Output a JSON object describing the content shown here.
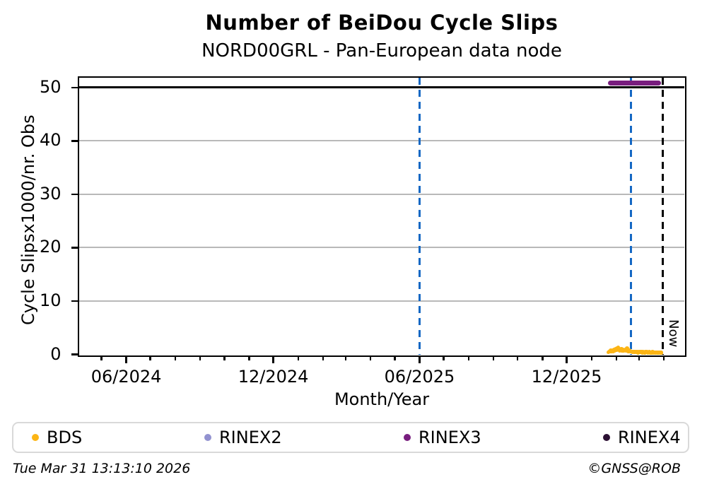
{
  "title": "Number of BeiDou Cycle Slips",
  "subtitle": "NORD00GRL - Pan-European data node",
  "footer": {
    "timestamp": "Tue Mar 31 13:13:10 2026",
    "credit": "©GNSS@ROB"
  },
  "legend": [
    {
      "label": "BDS",
      "color": "#fcb515"
    },
    {
      "label": "RINEX2",
      "color": "#9292d0"
    },
    {
      "label": "RINEX3",
      "color": "#781d7e"
    },
    {
      "label": "RINEX4",
      "color": "#2c1033"
    }
  ],
  "chart_data": {
    "type": "scatter",
    "title": "Number of BeiDou Cycle Slips",
    "subtitle": "NORD00GRL - Pan-European data node",
    "xlabel": "Month/Year",
    "ylabel": "Cycle Slipsx1000/nr. Obs",
    "x_range": [
      "2024-04-03",
      "2026-04-26"
    ],
    "ylim": [
      0,
      51.9
    ],
    "yticks": [
      0,
      10,
      20,
      30,
      40,
      50
    ],
    "xticks_major": [
      {
        "date": "2024-06-01",
        "label": "06/2024"
      },
      {
        "date": "2024-12-01",
        "label": "12/2024"
      },
      {
        "date": "2025-06-01",
        "label": "06/2025"
      },
      {
        "date": "2025-12-01",
        "label": "12/2025"
      }
    ],
    "xticks_minor": "monthly",
    "grid": "horizontal",
    "grid_color": "#b9b9b9",
    "legend_position": "bottom",
    "clip_line": {
      "y": 50,
      "color": "#000000"
    },
    "reference_lines": [
      {
        "name": "event-1",
        "date": "2025-06-01",
        "orientation": "vertical",
        "style": "dashed",
        "color": "#1568c4"
      },
      {
        "name": "event-2",
        "date": "2026-02-19",
        "orientation": "vertical",
        "style": "dashed",
        "color": "#1568c4"
      },
      {
        "name": "now",
        "date": "2026-03-31",
        "orientation": "vertical",
        "style": "dashed",
        "color": "#000000",
        "label": "Now"
      }
    ],
    "availability": [
      {
        "name": "RINEX3",
        "y": 50.9,
        "start": "2026-01-21",
        "end": "2026-03-28",
        "color": "#781d7e"
      }
    ],
    "points_x_unit": "days since x_range start",
    "series": [
      {
        "name": "BDS",
        "color": "#fcb515",
        "marker": "dot",
        "points": [
          [
            659,
            0.4
          ],
          [
            660,
            0.55
          ],
          [
            661,
            0.5
          ],
          [
            662,
            0.7
          ],
          [
            663,
            0.55
          ],
          [
            664,
            0.8
          ],
          [
            665,
            0.6
          ],
          [
            666,
            0.9
          ],
          [
            667,
            0.7
          ],
          [
            668,
            1.0
          ],
          [
            669,
            0.8
          ],
          [
            670,
            1.1
          ],
          [
            671,
            1.3
          ],
          [
            672,
            0.9
          ],
          [
            673,
            0.7
          ],
          [
            674,
            0.85
          ],
          [
            675,
            1.05
          ],
          [
            676,
            0.75
          ],
          [
            677,
            0.9
          ],
          [
            678,
            0.65
          ],
          [
            679,
            0.8
          ],
          [
            680,
            0.95
          ],
          [
            681,
            0.7
          ],
          [
            682,
            1.1
          ],
          [
            683,
            0.85
          ],
          [
            684,
            0.6
          ],
          [
            685,
            0.75
          ],
          [
            686,
            0.6
          ],
          [
            687,
            0.5
          ],
          [
            688,
            0.55
          ],
          [
            689,
            0.45
          ],
          [
            690,
            0.5
          ],
          [
            691,
            0.4
          ],
          [
            692,
            0.5
          ],
          [
            693,
            0.4
          ],
          [
            694,
            0.45
          ],
          [
            695,
            0.5
          ],
          [
            696,
            0.35
          ],
          [
            697,
            0.45
          ],
          [
            698,
            0.4
          ],
          [
            699,
            0.45
          ],
          [
            700,
            0.5
          ],
          [
            701,
            0.35
          ],
          [
            702,
            0.45
          ],
          [
            703,
            0.4
          ],
          [
            704,
            0.3
          ],
          [
            705,
            0.45
          ],
          [
            706,
            0.4
          ],
          [
            707,
            0.45
          ],
          [
            708,
            0.35
          ],
          [
            709,
            0.4
          ],
          [
            710,
            0.45
          ],
          [
            711,
            0.35
          ],
          [
            712,
            0.4
          ],
          [
            713,
            0.3
          ],
          [
            714,
            0.45
          ],
          [
            715,
            0.35
          ],
          [
            716,
            0.4
          ],
          [
            717,
            0.35
          ],
          [
            718,
            0.3
          ],
          [
            719,
            0.4
          ],
          [
            720,
            0.35
          ],
          [
            721,
            0.3
          ],
          [
            722,
            0.35
          ],
          [
            723,
            0.4
          ],
          [
            724,
            0.3
          ],
          [
            725,
            0.35
          ]
        ]
      },
      {
        "name": "RINEX2",
        "color": "#9292d0",
        "marker": "dot",
        "points": []
      },
      {
        "name": "RINEX3",
        "color": "#781d7e",
        "marker": "dot",
        "points": []
      },
      {
        "name": "RINEX4",
        "color": "#2c1033",
        "marker": "dot",
        "points": []
      }
    ]
  }
}
